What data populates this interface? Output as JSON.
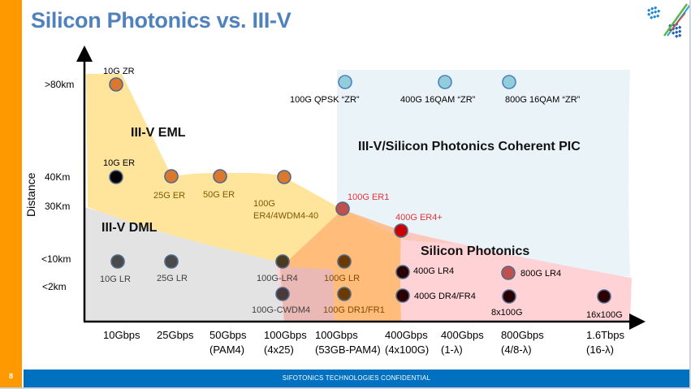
{
  "slide": {
    "title": "Silicon Photonics vs. III-V",
    "page_number": "8",
    "footer": "SIFOTONICS TECHNOLOGIES  CONFIDENTIAL",
    "logo_icon": "sifotonics-logo-icon"
  },
  "colors": {
    "title": "#4f81bd",
    "side_bar": "#ff9900",
    "footer_bar": "#0070c0",
    "eml_region": "#ffe49c",
    "dml_region": "#e3e3e3",
    "coherent_region": "#eaf4f8",
    "silicon_region": "#ffd2d6",
    "orange_region": "#ffbc7a",
    "red_label": "#e8303a"
  },
  "chart_data": {
    "type": "scatter",
    "title": "Silicon Photonics vs. III-V",
    "xlabel": "",
    "ylabel": "Distance",
    "x_categories": [
      [
        "10Gbps",
        ""
      ],
      [
        "25Gbps",
        ""
      ],
      [
        "50Gbps",
        "(PAM4)"
      ],
      [
        "100Gbps",
        "(4x25)"
      ],
      [
        "100Gbps",
        "(53GB-PAM4)"
      ],
      [
        "400Gbps",
        "(4x100G)"
      ],
      [
        "400Gbps",
        "(1-λ)"
      ],
      [
        "800Gbps",
        "(4/8-λ)"
      ],
      [
        "1.6Tbps",
        "(16-λ)"
      ]
    ],
    "y_categories": [
      ">80km",
      "40Km",
      "30Km",
      "<10km",
      "<2km"
    ],
    "regions": [
      {
        "name": "III-V EML",
        "label": "III-V EML"
      },
      {
        "name": "III-V DML",
        "label": "III-V DML"
      },
      {
        "name": "III-V/Silicon Photonics Coherent PIC",
        "label": "III-V/Silicon Photonics Coherent PIC"
      },
      {
        "name": "Silicon Photonics",
        "label": "Silicon Photonics"
      }
    ],
    "points": [
      {
        "label": "10G ZR",
        "x": "10Gbps",
        "y": ">80km",
        "color": "#d9782e"
      },
      {
        "label": "10G ER",
        "x": "10Gbps",
        "y": "40Km",
        "color": "#000000"
      },
      {
        "label": "25G ER",
        "x": "25Gbps",
        "y": "40Km",
        "color": "#d9782e"
      },
      {
        "label": "50G ER",
        "x": "50Gbps (PAM4)",
        "y": "40Km",
        "color": "#d9782e"
      },
      {
        "label": "100G ER4/4WDM4-40",
        "x": "100Gbps (4x25)",
        "y": "40Km",
        "color": "#d9782e"
      },
      {
        "label": "100G ER1",
        "x": "100Gbps (53GB-PAM4)",
        "y": "30Km",
        "color": "#c0504d"
      },
      {
        "label": "400G ER4+",
        "x": "400Gbps (4x100G)",
        "y": "30Km",
        "color": "#cc0000"
      },
      {
        "label": "100G QPSK “ZR”",
        "x": "100Gbps (53GB-PAM4)",
        "y": ">80km",
        "color": "#92cddc"
      },
      {
        "label": "400G 16QAM “ZR”",
        "x": "400Gbps (1-λ)",
        "y": ">80km",
        "color": "#92cddc"
      },
      {
        "label": "800G 16QAM “ZR”",
        "x": "800Gbps (4/8-λ)",
        "y": ">80km",
        "color": "#92cddc"
      },
      {
        "label": "10G LR",
        "x": "10Gbps",
        "y": "<10km",
        "color": "#4a4a4a"
      },
      {
        "label": "25G LR",
        "x": "25Gbps",
        "y": "<10km",
        "color": "#4a4a4a"
      },
      {
        "label": "100G-LR4",
        "x": "100Gbps (4x25)",
        "y": "<10km",
        "color": "#4a3a20"
      },
      {
        "label": "100G-CWDM4",
        "x": "100Gbps (4x25)",
        "y": "<2km",
        "color": "#4a3a3a"
      },
      {
        "label": "100G LR",
        "x": "100Gbps (53GB-PAM4)",
        "y": "<10km",
        "color": "#6b3a00"
      },
      {
        "label": "100G DR1/FR1",
        "x": "100Gbps (53GB-PAM4)",
        "y": "<2km",
        "color": "#6b3a00"
      },
      {
        "label": "400G LR4",
        "x": "400Gbps (4x100G)",
        "y": "<10km",
        "color": "#2a0000"
      },
      {
        "label": "400G DR4/FR4",
        "x": "400Gbps (4x100G)",
        "y": "<2km",
        "color": "#2a0000"
      },
      {
        "label": "800G LR4",
        "x": "800Gbps (4/8-λ)",
        "y": "<10km",
        "color": "#c0504d"
      },
      {
        "label": "8x100G",
        "x": "800Gbps (4/8-λ)",
        "y": "<2km",
        "color": "#2a0000"
      },
      {
        "label": "16x100G",
        "x": "1.6Tbps (16-λ)",
        "y": "<2km",
        "color": "#2a0000"
      }
    ]
  }
}
